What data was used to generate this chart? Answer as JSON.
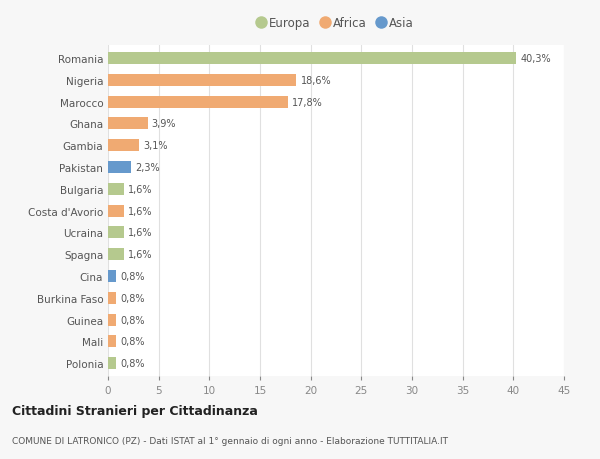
{
  "categories": [
    "Romania",
    "Nigeria",
    "Marocco",
    "Ghana",
    "Gambia",
    "Pakistan",
    "Bulgaria",
    "Costa d'Avorio",
    "Ucraina",
    "Spagna",
    "Cina",
    "Burkina Faso",
    "Guinea",
    "Mali",
    "Polonia"
  ],
  "values": [
    40.3,
    18.6,
    17.8,
    3.9,
    3.1,
    2.3,
    1.6,
    1.6,
    1.6,
    1.6,
    0.8,
    0.8,
    0.8,
    0.8,
    0.8
  ],
  "labels": [
    "40,3%",
    "18,6%",
    "17,8%",
    "3,9%",
    "3,1%",
    "2,3%",
    "1,6%",
    "1,6%",
    "1,6%",
    "1,6%",
    "0,8%",
    "0,8%",
    "0,8%",
    "0,8%",
    "0,8%"
  ],
  "continents": [
    "Europa",
    "Africa",
    "Africa",
    "Africa",
    "Africa",
    "Asia",
    "Europa",
    "Africa",
    "Europa",
    "Europa",
    "Asia",
    "Africa",
    "Africa",
    "Africa",
    "Europa"
  ],
  "colors": {
    "Europa": "#b5c98e",
    "Africa": "#f0aa72",
    "Asia": "#6699cc"
  },
  "xlim": [
    0,
    45
  ],
  "xticks": [
    0,
    5,
    10,
    15,
    20,
    25,
    30,
    35,
    40,
    45
  ],
  "background_color": "#f7f7f7",
  "plot_bg_color": "#ffffff",
  "grid_color": "#e0e0e0",
  "title": "Cittadini Stranieri per Cittadinanza",
  "subtitle": "COMUNE DI LATRONICO (PZ) - Dati ISTAT al 1° gennaio di ogni anno - Elaborazione TUTTITALIA.IT",
  "bar_height": 0.55
}
